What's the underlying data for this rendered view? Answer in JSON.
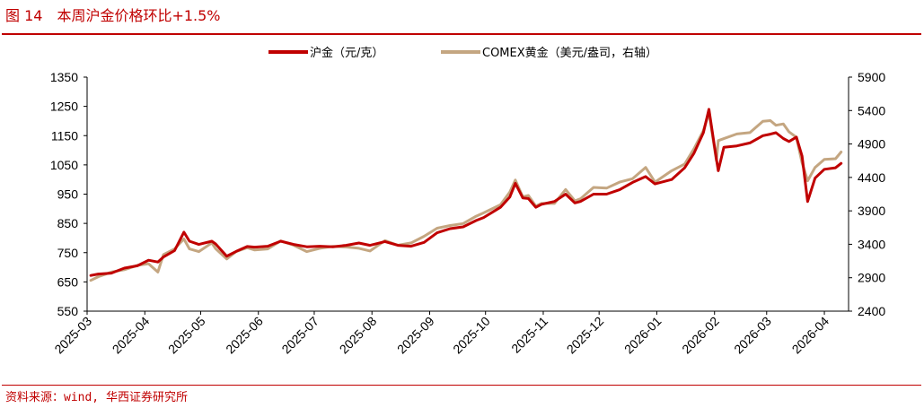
{
  "figure": {
    "label": "图 14",
    "title": "本周沪金价格环比+1.5%",
    "source": "资料来源：wind, 华西证券研究所"
  },
  "chart_data": {
    "type": "line",
    "title": "本周沪金价格环比+1.5%",
    "xlabel": "",
    "ylabel": "",
    "x_ticks": [
      "2025-03",
      "2025-04",
      "2025-05",
      "2025-06",
      "2025-07",
      "2025-08",
      "2025-09",
      "2025-10",
      "2025-11",
      "2025-12",
      "2026-01",
      "2026-02",
      "2026-03",
      "2026-04"
    ],
    "y_left": {
      "range": [
        550,
        1350
      ],
      "ticks": [
        550,
        650,
        750,
        850,
        950,
        1050,
        1150,
        1250,
        1350
      ]
    },
    "y_right": {
      "range": [
        2400,
        5900
      ],
      "ticks": [
        2400,
        2900,
        3400,
        3900,
        4400,
        4900,
        5400,
        5900
      ]
    },
    "legend_position": "top-center",
    "grid": false,
    "series": [
      {
        "name": "沪金（元/克）",
        "axis": "left",
        "color": "#c00000",
        "points": [
          [
            "2025-03-03",
            672
          ],
          [
            "2025-03-07",
            677
          ],
          [
            "2025-03-14",
            680
          ],
          [
            "2025-03-21",
            697
          ],
          [
            "2025-03-28",
            705
          ],
          [
            "2025-04-03",
            724
          ],
          [
            "2025-04-08",
            718
          ],
          [
            "2025-04-11",
            735
          ],
          [
            "2025-04-17",
            757
          ],
          [
            "2025-04-22",
            820
          ],
          [
            "2025-04-25",
            789
          ],
          [
            "2025-04-30",
            778
          ],
          [
            "2025-05-07",
            789
          ],
          [
            "2025-05-09",
            780
          ],
          [
            "2025-05-15",
            738
          ],
          [
            "2025-05-20",
            754
          ],
          [
            "2025-05-26",
            771
          ],
          [
            "2025-05-30",
            769
          ],
          [
            "2025-06-06",
            772
          ],
          [
            "2025-06-13",
            789
          ],
          [
            "2025-06-20",
            778
          ],
          [
            "2025-06-27",
            770
          ],
          [
            "2025-07-04",
            772
          ],
          [
            "2025-07-11",
            770
          ],
          [
            "2025-07-18",
            775
          ],
          [
            "2025-07-25",
            783
          ],
          [
            "2025-07-31",
            775
          ],
          [
            "2025-08-08",
            788
          ],
          [
            "2025-08-15",
            775
          ],
          [
            "2025-08-22",
            772
          ],
          [
            "2025-08-29",
            785
          ],
          [
            "2025-09-05",
            818
          ],
          [
            "2025-09-12",
            832
          ],
          [
            "2025-09-19",
            838
          ],
          [
            "2025-09-26",
            860
          ],
          [
            "2025-09-30",
            870
          ],
          [
            "2025-10-09",
            905
          ],
          [
            "2025-10-14",
            940
          ],
          [
            "2025-10-17",
            987
          ],
          [
            "2025-10-21",
            937
          ],
          [
            "2025-10-24",
            935
          ],
          [
            "2025-10-28",
            905
          ],
          [
            "2025-10-31",
            915
          ],
          [
            "2025-11-07",
            925
          ],
          [
            "2025-11-13",
            950
          ],
          [
            "2025-11-18",
            920
          ],
          [
            "2025-11-21",
            925
          ],
          [
            "2025-11-28",
            950
          ],
          [
            "2025-12-05",
            950
          ],
          [
            "2025-12-12",
            965
          ],
          [
            "2025-12-19",
            990
          ],
          [
            "2025-12-26",
            1010
          ],
          [
            "2025-12-31",
            985
          ],
          [
            "2026-01-09",
            1000
          ],
          [
            "2026-01-16",
            1040
          ],
          [
            "2026-01-21",
            1090
          ],
          [
            "2026-01-26",
            1160
          ],
          [
            "2026-01-29",
            1240
          ],
          [
            "2026-02-02",
            1070
          ],
          [
            "2026-02-03",
            1030
          ],
          [
            "2026-02-06",
            1110
          ],
          [
            "2026-02-13",
            1115
          ],
          [
            "2026-02-20",
            1125
          ],
          [
            "2026-02-27",
            1150
          ],
          [
            "2026-03-03",
            1155
          ],
          [
            "2026-03-06",
            1160
          ],
          [
            "2026-03-10",
            1140
          ],
          [
            "2026-03-13",
            1130
          ],
          [
            "2026-03-17",
            1145
          ],
          [
            "2026-03-20",
            1080
          ],
          [
            "2026-03-23",
            925
          ],
          [
            "2026-03-27",
            1005
          ],
          [
            "2026-04-01",
            1035
          ],
          [
            "2026-04-07",
            1040
          ],
          [
            "2026-04-10",
            1055
          ]
        ]
      },
      {
        "name": "COMEX黄金（美元/盎司，右轴）",
        "axis": "right",
        "color": "#c4a681",
        "points": [
          [
            "2025-03-03",
            2860
          ],
          [
            "2025-03-07",
            2915
          ],
          [
            "2025-03-14",
            2985
          ],
          [
            "2025-03-21",
            3020
          ],
          [
            "2025-03-28",
            3085
          ],
          [
            "2025-04-03",
            3110
          ],
          [
            "2025-04-08",
            2985
          ],
          [
            "2025-04-11",
            3245
          ],
          [
            "2025-04-17",
            3330
          ],
          [
            "2025-04-22",
            3480
          ],
          [
            "2025-04-25",
            3330
          ],
          [
            "2025-04-30",
            3290
          ],
          [
            "2025-05-07",
            3420
          ],
          [
            "2025-05-09",
            3335
          ],
          [
            "2025-05-15",
            3180
          ],
          [
            "2025-05-20",
            3290
          ],
          [
            "2025-05-26",
            3350
          ],
          [
            "2025-05-30",
            3315
          ],
          [
            "2025-06-06",
            3330
          ],
          [
            "2025-06-13",
            3450
          ],
          [
            "2025-06-20",
            3385
          ],
          [
            "2025-06-27",
            3290
          ],
          [
            "2025-07-04",
            3340
          ],
          [
            "2025-07-11",
            3370
          ],
          [
            "2025-07-18",
            3360
          ],
          [
            "2025-07-25",
            3340
          ],
          [
            "2025-07-31",
            3300
          ],
          [
            "2025-08-08",
            3455
          ],
          [
            "2025-08-15",
            3385
          ],
          [
            "2025-08-22",
            3420
          ],
          [
            "2025-08-29",
            3520
          ],
          [
            "2025-09-05",
            3640
          ],
          [
            "2025-09-12",
            3680
          ],
          [
            "2025-09-19",
            3710
          ],
          [
            "2025-09-26",
            3820
          ],
          [
            "2025-09-30",
            3870
          ],
          [
            "2025-10-09",
            3990
          ],
          [
            "2025-10-14",
            4180
          ],
          [
            "2025-10-17",
            4360
          ],
          [
            "2025-10-21",
            4110
          ],
          [
            "2025-10-24",
            4130
          ],
          [
            "2025-10-28",
            3970
          ],
          [
            "2025-10-31",
            4010
          ],
          [
            "2025-11-07",
            4010
          ],
          [
            "2025-11-13",
            4220
          ],
          [
            "2025-11-18",
            4050
          ],
          [
            "2025-11-21",
            4080
          ],
          [
            "2025-11-28",
            4250
          ],
          [
            "2025-12-05",
            4240
          ],
          [
            "2025-12-12",
            4330
          ],
          [
            "2025-12-19",
            4380
          ],
          [
            "2025-12-26",
            4550
          ],
          [
            "2025-12-31",
            4330
          ],
          [
            "2026-01-09",
            4500
          ],
          [
            "2026-01-16",
            4600
          ],
          [
            "2026-01-21",
            4830
          ],
          [
            "2026-01-26",
            5100
          ],
          [
            "2026-01-29",
            5370
          ],
          [
            "2026-02-02",
            4650
          ],
          [
            "2026-02-03",
            4950
          ],
          [
            "2026-02-06",
            4980
          ],
          [
            "2026-02-13",
            5050
          ],
          [
            "2026-02-20",
            5070
          ],
          [
            "2026-02-27",
            5240
          ],
          [
            "2026-03-03",
            5250
          ],
          [
            "2026-03-06",
            5180
          ],
          [
            "2026-03-10",
            5200
          ],
          [
            "2026-03-13",
            5080
          ],
          [
            "2026-03-17",
            5000
          ],
          [
            "2026-03-20",
            4620
          ],
          [
            "2026-03-23",
            4350
          ],
          [
            "2026-03-27",
            4550
          ],
          [
            "2026-04-01",
            4670
          ],
          [
            "2026-04-07",
            4680
          ],
          [
            "2026-04-10",
            4780
          ]
        ]
      }
    ]
  }
}
